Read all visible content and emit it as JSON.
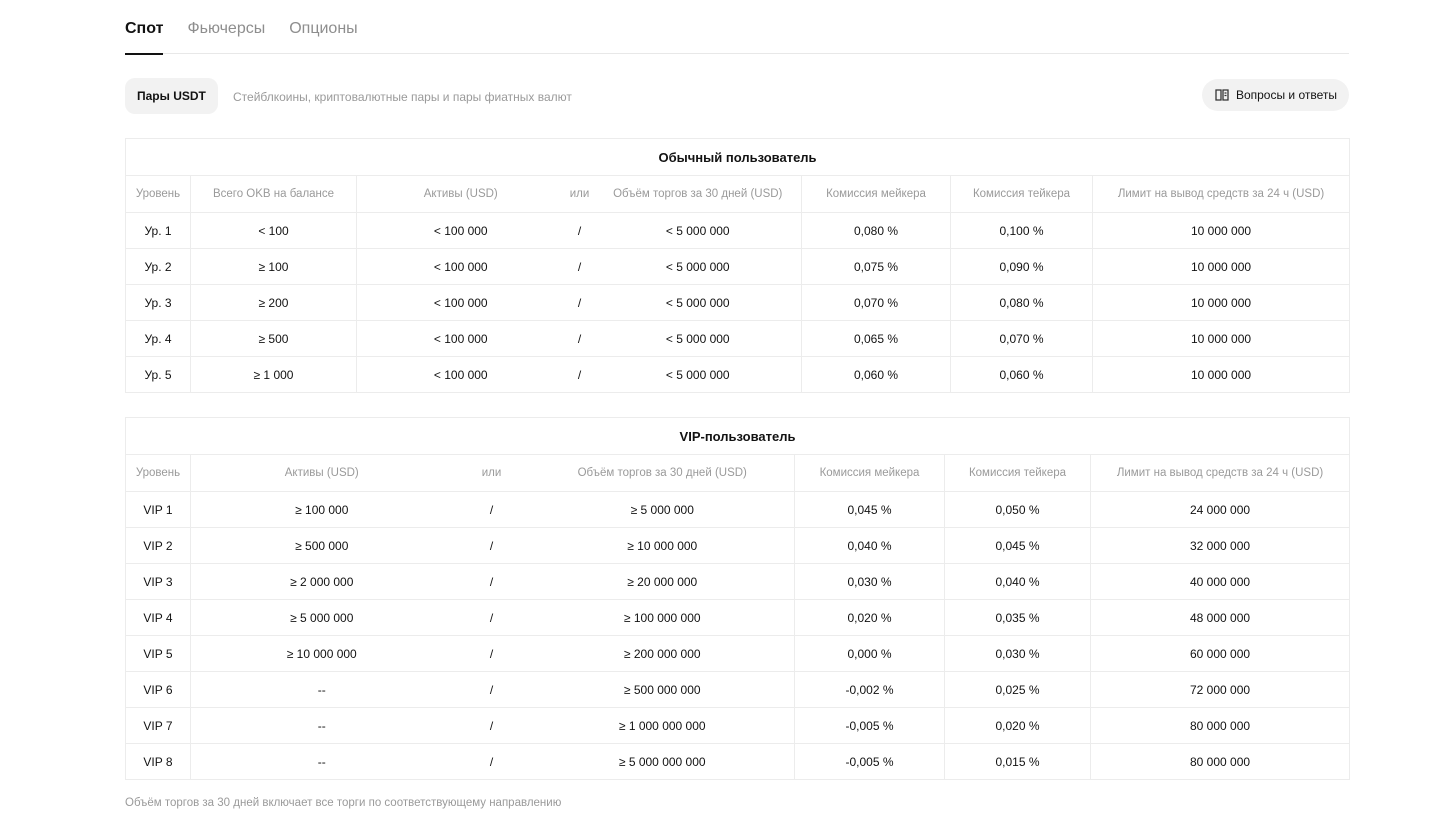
{
  "tabs": [
    "Спот",
    "Фьючерсы",
    "Опционы"
  ],
  "pair_button": "Пары USDT",
  "pair_description": "Стейблкоины, криптовалютные пары и пары фиатных валют",
  "faq_button": "Вопросы и ответы",
  "regular": {
    "title": "Обычный пользователь",
    "headers": [
      "Уровень",
      "Всего OKB на балансе",
      "Активы (USD)",
      "или",
      "Объём торгов за 30 дней (USD)",
      "Комиссия мейкера",
      "Комиссия тейкера",
      "Лимит на вывод средств за 24 ч (USD)"
    ],
    "rows": [
      [
        "Ур. 1",
        "< 100",
        "< 100 000",
        "/",
        "< 5 000 000",
        "0,080 %",
        "0,100 %",
        "10 000 000"
      ],
      [
        "Ур. 2",
        "≥ 100",
        "< 100 000",
        "/",
        "< 5 000 000",
        "0,075 %",
        "0,090 %",
        "10 000 000"
      ],
      [
        "Ур. 3",
        "≥ 200",
        "< 100 000",
        "/",
        "< 5 000 000",
        "0,070 %",
        "0,080 %",
        "10 000 000"
      ],
      [
        "Ур. 4",
        "≥ 500",
        "< 100 000",
        "/",
        "< 5 000 000",
        "0,065 %",
        "0,070 %",
        "10 000 000"
      ],
      [
        "Ур. 5",
        "≥ 1 000",
        "< 100 000",
        "/",
        "< 5 000 000",
        "0,060 %",
        "0,060 %",
        "10 000 000"
      ]
    ]
  },
  "vip": {
    "title": "VIP-пользователь",
    "headers": [
      "Уровень",
      "Активы (USD)",
      "или",
      "Объём торгов за 30 дней (USD)",
      "Комиссия мейкера",
      "Комиссия тейкера",
      "Лимит на вывод средств за 24 ч (USD)"
    ],
    "rows": [
      [
        "VIP 1",
        "≥ 100 000",
        "/",
        "≥ 5 000 000",
        "0,045 %",
        "0,050 %",
        "24 000 000"
      ],
      [
        "VIP 2",
        "≥ 500 000",
        "/",
        "≥ 10 000 000",
        "0,040 %",
        "0,045 %",
        "32 000 000"
      ],
      [
        "VIP 3",
        "≥ 2 000 000",
        "/",
        "≥ 20 000 000",
        "0,030 %",
        "0,040 %",
        "40 000 000"
      ],
      [
        "VIP 4",
        "≥ 5 000 000",
        "/",
        "≥ 100 000 000",
        "0,020 %",
        "0,035 %",
        "48 000 000"
      ],
      [
        "VIP 5",
        "≥ 10 000 000",
        "/",
        "≥ 200 000 000",
        "0,000 %",
        "0,030 %",
        "60 000 000"
      ],
      [
        "VIP 6",
        "--",
        "/",
        "≥ 500 000 000",
        "-0,002 %",
        "0,025 %",
        "72 000 000"
      ],
      [
        "VIP 7",
        "--",
        "/",
        "≥ 1 000 000 000",
        "-0,005 %",
        "0,020 %",
        "80 000 000"
      ],
      [
        "VIP 8",
        "--",
        "/",
        "≥ 5 000 000 000",
        "-0,005 %",
        "0,015 %",
        "80 000 000"
      ]
    ]
  },
  "footnote": "Объём торгов за 30 дней включает все торги по соответствующему направлению"
}
